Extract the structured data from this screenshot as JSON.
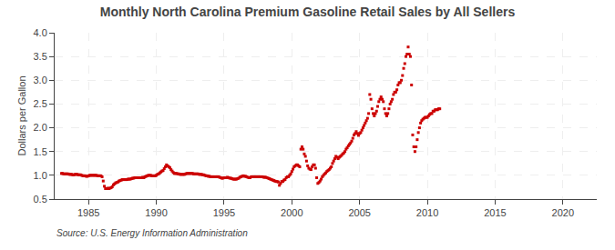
{
  "chart_data": {
    "type": "scatter",
    "title": "Monthly North Carolina Premium Gasoline Retail Sales by All Sellers",
    "ylabel": "Dollars per Gallon",
    "source": "Source: U.S. Energy Information Administration",
    "color": "#cc0000",
    "marker": "square",
    "grid": true,
    "xlim": [
      1982.5,
      2022.5
    ],
    "xticks": [
      1985,
      1990,
      1995,
      2000,
      2005,
      2010,
      2015,
      2020
    ],
    "ylim": [
      0.5,
      4.0
    ],
    "yticks": [
      0.5,
      {
        "value": 1.0,
        "label": "1.0"
      },
      1.5,
      {
        "value": 2.0,
        "label": "2.0"
      },
      2.5,
      {
        "value": 3.0,
        "label": "3.0"
      },
      3.5,
      {
        "value": 4.0,
        "label": "4.0"
      }
    ],
    "x": [
      1983.0,
      1983.083,
      1983.167,
      1983.25,
      1983.333,
      1983.417,
      1983.5,
      1983.583,
      1983.667,
      1983.75,
      1983.833,
      1983.917,
      1984.0,
      1984.083,
      1984.167,
      1984.25,
      1984.333,
      1984.417,
      1984.5,
      1984.583,
      1984.667,
      1984.75,
      1984.833,
      1984.917,
      1985.0,
      1985.083,
      1985.167,
      1985.25,
      1985.333,
      1985.417,
      1985.5,
      1985.583,
      1985.667,
      1985.75,
      1985.833,
      1985.917,
      1986.0,
      1986.083,
      1986.167,
      1986.25,
      1986.333,
      1986.417,
      1986.5,
      1986.583,
      1986.667,
      1986.75,
      1986.833,
      1986.917,
      1987.0,
      1987.083,
      1987.167,
      1987.25,
      1987.333,
      1987.417,
      1987.5,
      1987.583,
      1987.667,
      1987.75,
      1987.833,
      1987.917,
      1988.0,
      1988.083,
      1988.167,
      1988.25,
      1988.333,
      1988.417,
      1988.5,
      1988.583,
      1988.667,
      1988.75,
      1988.833,
      1988.917,
      1989.0,
      1989.083,
      1989.167,
      1989.25,
      1989.333,
      1989.417,
      1989.5,
      1989.583,
      1989.667,
      1989.75,
      1989.833,
      1989.917,
      1990.0,
      1990.083,
      1990.167,
      1990.25,
      1990.333,
      1990.417,
      1990.5,
      1990.583,
      1990.667,
      1990.75,
      1990.833,
      1990.917,
      1991.0,
      1991.083,
      1991.167,
      1991.25,
      1991.333,
      1991.417,
      1991.5,
      1991.583,
      1991.667,
      1991.75,
      1991.833,
      1991.917,
      1992.0,
      1992.083,
      1992.167,
      1992.25,
      1992.333,
      1992.417,
      1992.5,
      1992.583,
      1992.667,
      1992.75,
      1992.833,
      1992.917,
      1993.0,
      1993.083,
      1993.167,
      1993.25,
      1993.333,
      1993.417,
      1993.5,
      1993.583,
      1993.667,
      1993.75,
      1993.833,
      1993.917,
      1994.0,
      1994.083,
      1994.167,
      1994.25,
      1994.333,
      1994.417,
      1994.5,
      1994.583,
      1994.667,
      1994.75,
      1994.833,
      1994.917,
      1995.0,
      1995.083,
      1995.167,
      1995.25,
      1995.333,
      1995.417,
      1995.5,
      1995.583,
      1995.667,
      1995.75,
      1995.833,
      1995.917,
      1996.0,
      1996.083,
      1996.167,
      1996.25,
      1996.333,
      1996.417,
      1996.5,
      1996.583,
      1996.667,
      1996.75,
      1996.833,
      1996.917,
      1997.0,
      1997.083,
      1997.167,
      1997.25,
      1997.333,
      1997.417,
      1997.5,
      1997.583,
      1997.667,
      1997.75,
      1997.833,
      1997.917,
      1998.0,
      1998.083,
      1998.167,
      1998.25,
      1998.333,
      1998.417,
      1998.5,
      1998.583,
      1998.667,
      1998.75,
      1998.833,
      1998.917,
      1999.0,
      1999.083,
      1999.167,
      1999.25,
      1999.333,
      1999.417,
      1999.5,
      1999.583,
      1999.667,
      1999.75,
      1999.833,
      1999.917,
      2000.0,
      2000.083,
      2000.167,
      2000.25,
      2000.333,
      2000.417,
      2000.5,
      2000.583,
      2000.667,
      2000.75,
      2000.833,
      2000.917,
      2001.0,
      2001.083,
      2001.167,
      2001.25,
      2001.333,
      2001.417,
      2001.5,
      2001.583,
      2001.667,
      2001.75,
      2001.833,
      2001.917,
      2002.0,
      2002.083,
      2002.167,
      2002.25,
      2002.333,
      2002.417,
      2002.5,
      2002.583,
      2002.667,
      2002.75,
      2002.833,
      2002.917,
      2003.0,
      2003.083,
      2003.167,
      2003.25,
      2003.333,
      2003.417,
      2003.5,
      2003.583,
      2003.667,
      2003.75,
      2003.833,
      2003.917,
      2004.0,
      2004.083,
      2004.167,
      2004.25,
      2004.333,
      2004.417,
      2004.5,
      2004.583,
      2004.667,
      2004.75,
      2004.833,
      2004.917,
      2005.0,
      2005.083,
      2005.167,
      2005.25,
      2005.333,
      2005.417,
      2005.5,
      2005.583,
      2005.667,
      2005.75,
      2005.833,
      2005.917,
      2006.0,
      2006.083,
      2006.167,
      2006.25,
      2006.333,
      2006.417,
      2006.5,
      2006.583,
      2006.667,
      2006.75,
      2006.833,
      2006.917,
      2007.0,
      2007.083,
      2007.167,
      2007.25,
      2007.333,
      2007.417,
      2007.5,
      2007.583,
      2007.667,
      2007.75,
      2007.833,
      2007.917,
      2008.0,
      2008.083,
      2008.167,
      2008.25,
      2008.333,
      2008.417,
      2008.5,
      2008.583,
      2008.667,
      2008.75,
      2008.833,
      2008.917,
      2009.0,
      2009.083,
      2009.167,
      2009.25,
      2009.333,
      2009.417,
      2009.5,
      2009.583,
      2009.667,
      2009.75,
      2009.833,
      2009.917,
      2010.0,
      2010.083,
      2010.167,
      2010.25,
      2010.333,
      2010.417,
      2010.5,
      2010.583,
      2010.667,
      2010.75,
      2010.833,
      2010.917
    ],
    "values": [
      1.04,
      1.04,
      1.03,
      1.03,
      1.03,
      1.03,
      1.03,
      1.02,
      1.02,
      1.02,
      1.01,
      1.01,
      1.02,
      1.02,
      1.02,
      1.01,
      1.01,
      1.01,
      1.0,
      0.99,
      0.99,
      0.99,
      0.98,
      0.98,
      0.99,
      1.0,
      1.0,
      1.0,
      1.0,
      1.0,
      1.0,
      1.0,
      0.99,
      0.99,
      0.99,
      0.99,
      0.97,
      0.88,
      0.77,
      0.72,
      0.72,
      0.73,
      0.72,
      0.73,
      0.74,
      0.76,
      0.8,
      0.82,
      0.84,
      0.85,
      0.86,
      0.88,
      0.89,
      0.9,
      0.91,
      0.91,
      0.91,
      0.91,
      0.91,
      0.92,
      0.92,
      0.92,
      0.93,
      0.94,
      0.94,
      0.95,
      0.95,
      0.95,
      0.95,
      0.95,
      0.95,
      0.95,
      0.96,
      0.95,
      0.97,
      0.98,
      0.99,
      1.0,
      1.0,
      1.0,
      0.99,
      0.99,
      0.99,
      0.99,
      1.0,
      1.02,
      1.03,
      1.05,
      1.07,
      1.09,
      1.1,
      1.14,
      1.18,
      1.22,
      1.2,
      1.18,
      1.16,
      1.12,
      1.09,
      1.06,
      1.04,
      1.04,
      1.04,
      1.03,
      1.03,
      1.02,
      1.02,
      1.02,
      1.02,
      1.02,
      1.03,
      1.04,
      1.04,
      1.04,
      1.04,
      1.04,
      1.04,
      1.03,
      1.03,
      1.03,
      1.03,
      1.03,
      1.02,
      1.02,
      1.02,
      1.01,
      1.01,
      1.0,
      0.99,
      0.99,
      0.98,
      0.98,
      0.97,
      0.97,
      0.97,
      0.97,
      0.97,
      0.97,
      0.97,
      0.97,
      0.96,
      0.95,
      0.94,
      0.94,
      0.95,
      0.95,
      0.95,
      0.96,
      0.95,
      0.94,
      0.94,
      0.93,
      0.92,
      0.92,
      0.92,
      0.92,
      0.93,
      0.94,
      0.96,
      0.97,
      0.98,
      0.99,
      0.98,
      0.98,
      0.97,
      0.96,
      0.95,
      0.95,
      0.97,
      0.97,
      0.97,
      0.97,
      0.97,
      0.97,
      0.97,
      0.97,
      0.97,
      0.97,
      0.97,
      0.96,
      0.96,
      0.96,
      0.95,
      0.94,
      0.93,
      0.92,
      0.91,
      0.9,
      0.89,
      0.88,
      0.87,
      0.87,
      0.86,
      0.79,
      0.83,
      0.87,
      0.87,
      0.9,
      0.91,
      0.95,
      0.97,
      0.97,
      1.0,
      1.03,
      1.08,
      1.13,
      1.18,
      1.2,
      1.22,
      1.22,
      1.2,
      1.18,
      1.55,
      1.6,
      1.55,
      1.45,
      1.4,
      1.3,
      1.2,
      1.15,
      1.13,
      1.12,
      1.18,
      1.22,
      1.22,
      1.15,
      0.95,
      0.83,
      0.85,
      0.88,
      0.92,
      0.97,
      1.0,
      1.03,
      1.05,
      1.08,
      1.1,
      1.12,
      1.15,
      1.18,
      1.25,
      1.3,
      1.35,
      1.4,
      1.38,
      1.35,
      1.38,
      1.4,
      1.42,
      1.45,
      1.47,
      1.5,
      1.55,
      1.58,
      1.62,
      1.65,
      1.68,
      1.72,
      1.78,
      1.85,
      1.88,
      1.92,
      1.88,
      1.84,
      1.88,
      1.9,
      1.95,
      2.0,
      2.05,
      2.1,
      2.15,
      2.2,
      2.3,
      2.7,
      2.6,
      2.4,
      2.3,
      2.25,
      2.3,
      2.35,
      2.45,
      2.55,
      2.6,
      2.65,
      2.6,
      2.55,
      2.4,
      2.3,
      2.25,
      2.3,
      2.4,
      2.5,
      2.55,
      2.6,
      2.7,
      2.75,
      2.75,
      2.8,
      2.9,
      2.95,
      2.95,
      3.0,
      3.1,
      3.25,
      3.35,
      3.5,
      3.55,
      3.7,
      3.55,
      3.5,
      2.9,
      1.85,
      1.6,
      1.5,
      1.6,
      1.75,
      1.9,
      2.0,
      2.1,
      2.15,
      2.18,
      2.2,
      2.22,
      2.22,
      2.22,
      2.25,
      2.28,
      2.3,
      2.3,
      2.35,
      2.35,
      2.38,
      2.38,
      2.38,
      2.4,
      2.4
    ]
  }
}
